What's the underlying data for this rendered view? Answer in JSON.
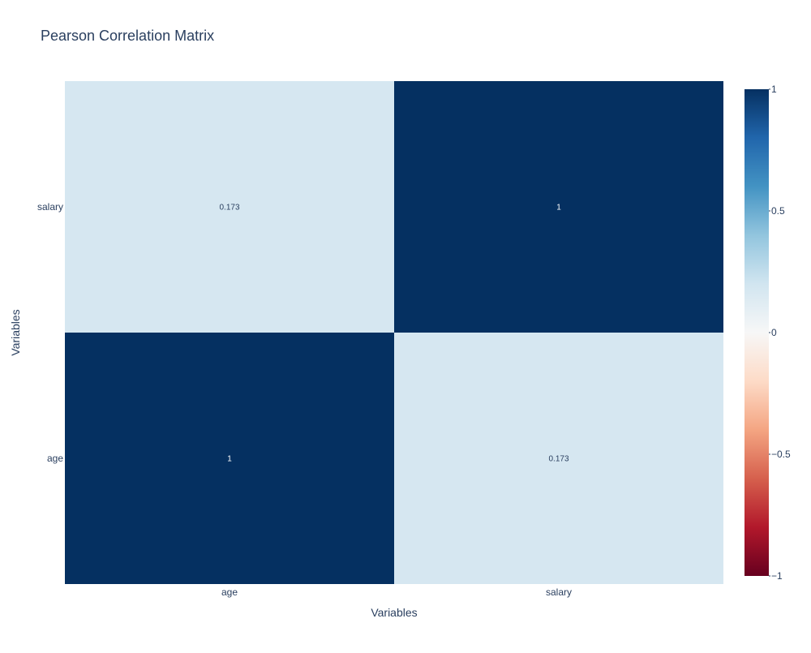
{
  "chart_data": {
    "type": "heatmap",
    "title": "Pearson Correlation Matrix",
    "xlabel": "Variables",
    "ylabel": "Variables",
    "x_categories": [
      "age",
      "salary"
    ],
    "y_categories": [
      "age",
      "salary"
    ],
    "z": [
      [
        1,
        0.173
      ],
      [
        0.173,
        1
      ]
    ],
    "cell_labels": [
      [
        "1",
        "0.173"
      ],
      [
        "0.173",
        "1"
      ]
    ],
    "zlim": [
      -1,
      1
    ],
    "colorscale": "RdBu",
    "colorbar": {
      "ticks": [
        1,
        0.5,
        0,
        -0.5,
        -1
      ],
      "tick_labels": [
        "1",
        "0.5",
        "0",
        "−0.5",
        "−1"
      ],
      "colors": [
        "#67001f",
        "#b2182b",
        "#d6604d",
        "#f4a582",
        "#fddbc7",
        "#f7f7f7",
        "#d1e5f0",
        "#92c5de",
        "#4393c3",
        "#2166ac",
        "#053061"
      ]
    }
  }
}
